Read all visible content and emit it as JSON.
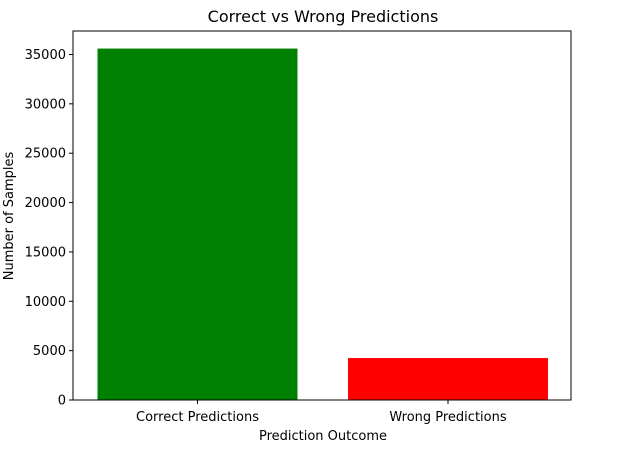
{
  "chart_data": {
    "type": "bar",
    "title": "Correct vs Wrong Predictions",
    "xlabel": "Prediction Outcome",
    "ylabel": "Number of Samples",
    "categories": [
      "Correct Predictions",
      "Wrong Predictions"
    ],
    "values": [
      35600,
      4250
    ],
    "colors": [
      "#008000",
      "#ff0000"
    ],
    "ylim": [
      0,
      37380
    ],
    "yticks": [
      0,
      5000,
      10000,
      15000,
      20000,
      25000,
      30000,
      35000
    ],
    "grid": false,
    "legend": "none"
  }
}
